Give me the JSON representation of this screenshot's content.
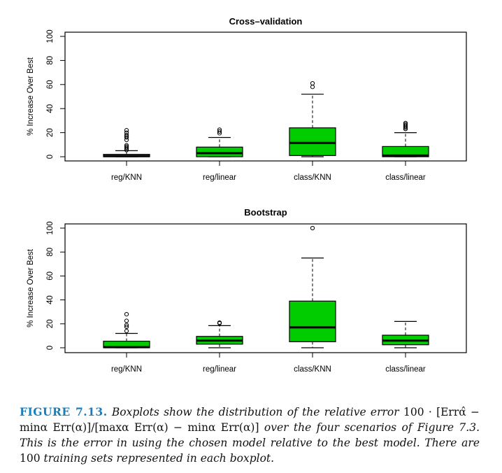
{
  "chart_data": [
    {
      "type": "boxplot",
      "title": "Cross–validation",
      "xlabel": "",
      "ylabel": "% Increase Over Best",
      "ylim": [
        0,
        100
      ],
      "yticks": [
        0,
        20,
        40,
        60,
        80,
        100
      ],
      "categories": [
        "reg/KNN",
        "reg/linear",
        "class/KNN",
        "class/linear"
      ],
      "box_color": "#00cc00",
      "boxes": [
        {
          "name": "reg/KNN",
          "whisker_low": 0,
          "q1": 0,
          "median": 0.5,
          "q3": 2,
          "whisker_high": 5,
          "outliers": [
            5.5,
            6.5,
            7.5,
            8.5,
            9.5,
            14,
            16,
            17,
            18,
            20,
            22
          ]
        },
        {
          "name": "reg/linear",
          "whisker_low": 0,
          "q1": 0,
          "median": 3,
          "q3": 8,
          "whisker_high": 16,
          "outliers": [
            19.5,
            21,
            22.5
          ]
        },
        {
          "name": "class/KNN",
          "whisker_low": 0,
          "q1": 1,
          "median": 11.5,
          "q3": 24,
          "whisker_high": 52,
          "outliers": [
            58,
            61
          ]
        },
        {
          "name": "class/linear",
          "whisker_low": 0,
          "q1": 0,
          "median": 1,
          "q3": 8.5,
          "whisker_high": 20,
          "outliers": [
            23,
            24,
            25,
            26,
            27,
            28
          ]
        }
      ]
    },
    {
      "type": "boxplot",
      "title": "Bootstrap",
      "xlabel": "",
      "ylabel": "% Increase Over Best",
      "ylim": [
        0,
        100
      ],
      "yticks": [
        0,
        20,
        40,
        60,
        80,
        100
      ],
      "categories": [
        "reg/KNN",
        "reg/linear",
        "class/KNN",
        "class/linear"
      ],
      "box_color": "#00cc00",
      "boxes": [
        {
          "name": "reg/KNN",
          "whisker_low": 0,
          "q1": 0,
          "median": 0.5,
          "q3": 5.5,
          "whisker_high": 12,
          "outliers": [
            14,
            17.5,
            19,
            22.5,
            28
          ]
        },
        {
          "name": "reg/linear",
          "whisker_low": 0,
          "q1": 3,
          "median": 6,
          "q3": 9.5,
          "whisker_high": 18.5,
          "outliers": [
            20.5,
            21
          ]
        },
        {
          "name": "class/KNN",
          "whisker_low": 0,
          "q1": 5,
          "median": 17,
          "q3": 39,
          "whisker_high": 75,
          "outliers": [
            100
          ]
        },
        {
          "name": "class/linear",
          "whisker_low": 0,
          "q1": 2.5,
          "median": 6,
          "q3": 10.5,
          "whisker_high": 22,
          "outliers": []
        }
      ]
    }
  ],
  "caption": {
    "label": "FIGURE 7.13.",
    "text1": "Boxplots show the distribution of the relative error",
    "formula": "100 · [Errα̂ − minα Err(α)]/[maxα Err(α) − minα Err(α)]",
    "text2": "over the four scenarios of Figure 7.3. This is the error in using the chosen model relative to the best model. There are",
    "number": "100",
    "text3": "training sets represented in each boxplot."
  }
}
